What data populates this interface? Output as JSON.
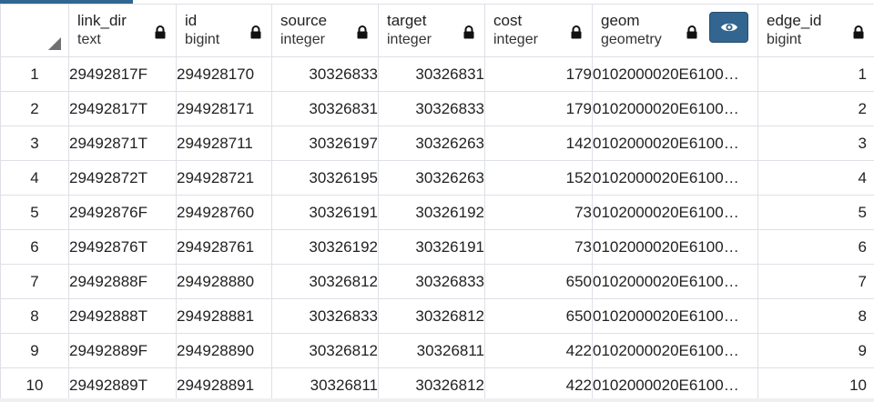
{
  "grid": {
    "columns": [
      {
        "name": "link_dir",
        "type": "text",
        "locked": true
      },
      {
        "name": "id",
        "type": "bigint",
        "locked": true
      },
      {
        "name": "source",
        "type": "integer",
        "locked": true
      },
      {
        "name": "target",
        "type": "integer",
        "locked": true
      },
      {
        "name": "cost",
        "type": "integer",
        "locked": true
      },
      {
        "name": "geom",
        "type": "geometry",
        "locked": true,
        "has_viewer_button": true
      },
      {
        "name": "edge_id",
        "type": "bigint",
        "locked": true
      }
    ],
    "rows": [
      {
        "num": "1",
        "link_dir": "29492817F",
        "id": "294928170",
        "source": "30326833",
        "target": "30326831",
        "cost": "179",
        "geom": "0102000020E6100…",
        "edge_id": "1"
      },
      {
        "num": "2",
        "link_dir": "29492817T",
        "id": "294928171",
        "source": "30326831",
        "target": "30326833",
        "cost": "179",
        "geom": "0102000020E6100…",
        "edge_id": "2"
      },
      {
        "num": "3",
        "link_dir": "29492871T",
        "id": "294928711",
        "source": "30326197",
        "target": "30326263",
        "cost": "142",
        "geom": "0102000020E6100…",
        "edge_id": "3"
      },
      {
        "num": "4",
        "link_dir": "29492872T",
        "id": "294928721",
        "source": "30326195",
        "target": "30326263",
        "cost": "152",
        "geom": "0102000020E6100…",
        "edge_id": "4"
      },
      {
        "num": "5",
        "link_dir": "29492876F",
        "id": "294928760",
        "source": "30326191",
        "target": "30326192",
        "cost": "73",
        "geom": "0102000020E6100…",
        "edge_id": "5"
      },
      {
        "num": "6",
        "link_dir": "29492876T",
        "id": "294928761",
        "source": "30326192",
        "target": "30326191",
        "cost": "73",
        "geom": "0102000020E6100…",
        "edge_id": "6"
      },
      {
        "num": "7",
        "link_dir": "29492888F",
        "id": "294928880",
        "source": "30326812",
        "target": "30326833",
        "cost": "650",
        "geom": "0102000020E6100…",
        "edge_id": "7"
      },
      {
        "num": "8",
        "link_dir": "29492888T",
        "id": "294928881",
        "source": "30326833",
        "target": "30326812",
        "cost": "650",
        "geom": "0102000020E6100…",
        "edge_id": "8"
      },
      {
        "num": "9",
        "link_dir": "29492889F",
        "id": "294928890",
        "source": "30326812",
        "target": "30326811",
        "cost": "422",
        "geom": "0102000020E6100…",
        "edge_id": "9"
      },
      {
        "num": "10",
        "link_dir": "29492889T",
        "id": "294928891",
        "source": "30326811",
        "target": "30326812",
        "cost": "422",
        "geom": "0102000020E6100…",
        "edge_id": "10"
      }
    ],
    "icons": {
      "lock": "lock-icon",
      "viewer": "eye-icon",
      "select_all": "corner-triangle-icon"
    },
    "colors": {
      "accent": "#326690",
      "border": "#dde0e6",
      "text": "#222222"
    }
  }
}
